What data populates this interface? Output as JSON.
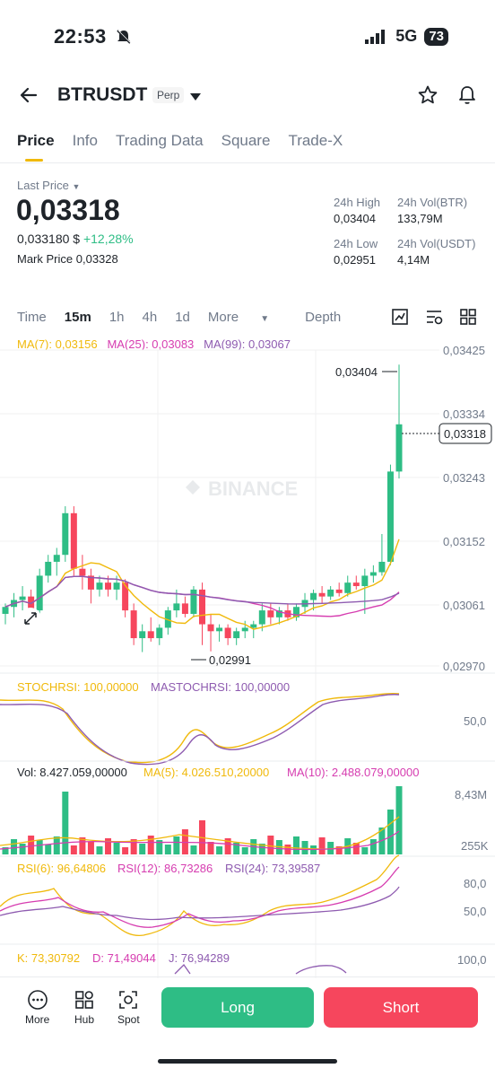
{
  "status_bar": {
    "time": "22:53",
    "network": "5G",
    "battery": "73"
  },
  "header": {
    "pair": "BTRUSDT",
    "badge": "Perp"
  },
  "tabs": [
    "Price",
    "Info",
    "Trading Data",
    "Square",
    "Trade-X"
  ],
  "ticker": {
    "last_price_label": "Last Price",
    "last_price": "0,03318",
    "usd_price": "0,033180 $",
    "change": "+12,28%",
    "mark_label": "Mark Price",
    "mark_value": "0,03328",
    "high_label": "24h High",
    "high_value": "0,03404",
    "vol_btr_label": "24h Vol(BTR)",
    "vol_btr_value": "133,79M",
    "low_label": "24h Low",
    "low_value": "0,02951",
    "vol_usdt_label": "24h Vol(USDT)",
    "vol_usdt_value": "4,14M"
  },
  "intervals": {
    "items": [
      "Time",
      "15m",
      "1h",
      "4h",
      "1d",
      "More",
      "Depth"
    ],
    "active": "15m"
  },
  "ma": {
    "ma7": "MA(7): 0,03156",
    "ma25": "MA(25): 0,03083",
    "ma99": "MA(99): 0,03067"
  },
  "colors": {
    "up": "#2ebd85",
    "down": "#f6465d",
    "accent": "#f0b90b",
    "ma7": "#f0b90b",
    "ma25": "#d63db0",
    "ma99": "#8e5bb0"
  },
  "price_axis": [
    "0,03425",
    "0,03334",
    "0,03243",
    "0,03152",
    "0,03061",
    "0,02970"
  ],
  "current_price_tag": "0,03318",
  "high_marker": "0,03404",
  "low_marker": "0,02991",
  "watermark": "BINANCE",
  "stochrsi": {
    "k": "STOCHRSI: 100,00000",
    "d": "MASTOCHRSI: 100,00000",
    "axis": "50,0"
  },
  "volume": {
    "vol": "Vol: 8.427.059,00000",
    "ma5": "MA(5): 4.026.510,20000",
    "ma10": "MA(10): 2.488.079,00000",
    "axis_top": "8,43M",
    "axis_bottom": "255K"
  },
  "rsi": {
    "rsi6": "RSI(6): 96,64806",
    "rsi12": "RSI(12): 86,73286",
    "rsi24": "RSI(24): 73,39587",
    "axis_top": "80,0",
    "axis_bottom": "50,0"
  },
  "kdj": {
    "k": "K: 73,30792",
    "d": "D: 71,49044",
    "j": "J: 76,94289",
    "axis": "100,0"
  },
  "bottom_nav": {
    "more": "More",
    "hub": "Hub",
    "spot": "Spot",
    "long": "Long",
    "short": "Short"
  },
  "chart_data": {
    "type": "candlestick",
    "price_axis": [
      0.03425,
      0.03334,
      0.03243,
      0.03152,
      0.03061,
      0.0297
    ],
    "candles": [
      [
        0.03045,
        0.0306,
        0.0303,
        0.03055
      ],
      [
        0.03055,
        0.03075,
        0.0304,
        0.03065
      ],
      [
        0.03065,
        0.03085,
        0.0305,
        0.0307
      ],
      [
        0.0307,
        0.0308,
        0.0304,
        0.0305
      ],
      [
        0.0305,
        0.0311,
        0.03045,
        0.031
      ],
      [
        0.031,
        0.0313,
        0.0309,
        0.0312
      ],
      [
        0.0312,
        0.0314,
        0.031,
        0.0313
      ],
      [
        0.0313,
        0.032,
        0.0312,
        0.0319
      ],
      [
        0.0319,
        0.032,
        0.031,
        0.0311
      ],
      [
        0.0311,
        0.0313,
        0.0308,
        0.031
      ],
      [
        0.031,
        0.0311,
        0.0306,
        0.0308
      ],
      [
        0.0308,
        0.031,
        0.0307,
        0.0309
      ],
      [
        0.0309,
        0.031,
        0.0307,
        0.0308
      ],
      [
        0.0308,
        0.031,
        0.03065,
        0.0309
      ],
      [
        0.0309,
        0.03095,
        0.0304,
        0.0305
      ],
      [
        0.0305,
        0.0306,
        0.03,
        0.0301
      ],
      [
        0.0301,
        0.0303,
        0.0299,
        0.0302
      ],
      [
        0.0302,
        0.0304,
        0.03005,
        0.0301
      ],
      [
        0.0301,
        0.0303,
        0.03,
        0.03025
      ],
      [
        0.03025,
        0.03055,
        0.03015,
        0.0305
      ],
      [
        0.0305,
        0.0308,
        0.0304,
        0.0306
      ],
      [
        0.0306,
        0.0307,
        0.0304,
        0.03045
      ],
      [
        0.03045,
        0.03085,
        0.0304,
        0.0308
      ],
      [
        0.0308,
        0.0309,
        0.03,
        0.0303
      ],
      [
        0.0303,
        0.03045,
        0.02991,
        0.0302
      ],
      [
        0.0302,
        0.0303,
        0.03005,
        0.03025
      ],
      [
        0.03025,
        0.0303,
        0.03,
        0.0301
      ],
      [
        0.0301,
        0.03025,
        0.03,
        0.0302
      ],
      [
        0.0302,
        0.03035,
        0.0301,
        0.03025
      ],
      [
        0.03025,
        0.03035,
        0.0301,
        0.0303
      ],
      [
        0.0303,
        0.0306,
        0.0302,
        0.0305
      ],
      [
        0.0305,
        0.0306,
        0.0303,
        0.0304
      ],
      [
        0.0304,
        0.03055,
        0.0303,
        0.0305
      ],
      [
        0.0305,
        0.0306,
        0.03035,
        0.0304
      ],
      [
        0.0304,
        0.0306,
        0.03035,
        0.03055
      ],
      [
        0.03055,
        0.03075,
        0.03045,
        0.03065
      ],
      [
        0.03065,
        0.0308,
        0.0305,
        0.03075
      ],
      [
        0.03075,
        0.03085,
        0.0306,
        0.0307
      ],
      [
        0.0307,
        0.03085,
        0.03065,
        0.0308
      ],
      [
        0.0308,
        0.0309,
        0.0307,
        0.03075
      ],
      [
        0.03075,
        0.031,
        0.0307,
        0.0309
      ],
      [
        0.0309,
        0.031,
        0.0308,
        0.03085
      ],
      [
        0.03085,
        0.0311,
        0.03045,
        0.031
      ],
      [
        0.031,
        0.03115,
        0.0309,
        0.03105
      ],
      [
        0.03105,
        0.0316,
        0.031,
        0.0312
      ],
      [
        0.0312,
        0.0326,
        0.03115,
        0.0325
      ],
      [
        0.0325,
        0.03404,
        0.0324,
        0.03318
      ]
    ]
  }
}
